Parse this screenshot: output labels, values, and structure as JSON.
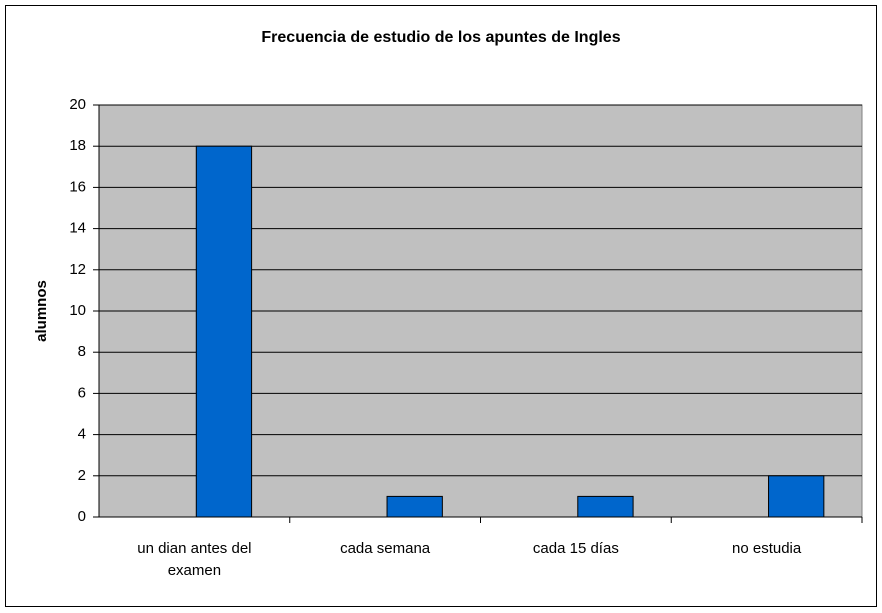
{
  "chart_data": {
    "type": "bar",
    "title": "Frecuencia de estudio de los apuntes de Ingles",
    "y_label": "alumnos",
    "categories": [
      "un dian antes del examen",
      "cada semana",
      "cada 15 días",
      "no estudia"
    ],
    "values": [
      18,
      1,
      1,
      2
    ],
    "color": "#0066cc",
    "ylim": [
      0,
      20
    ],
    "yticks": [
      0,
      2,
      4,
      6,
      8,
      10,
      12,
      14,
      16,
      18,
      20
    ],
    "grid": true
  }
}
